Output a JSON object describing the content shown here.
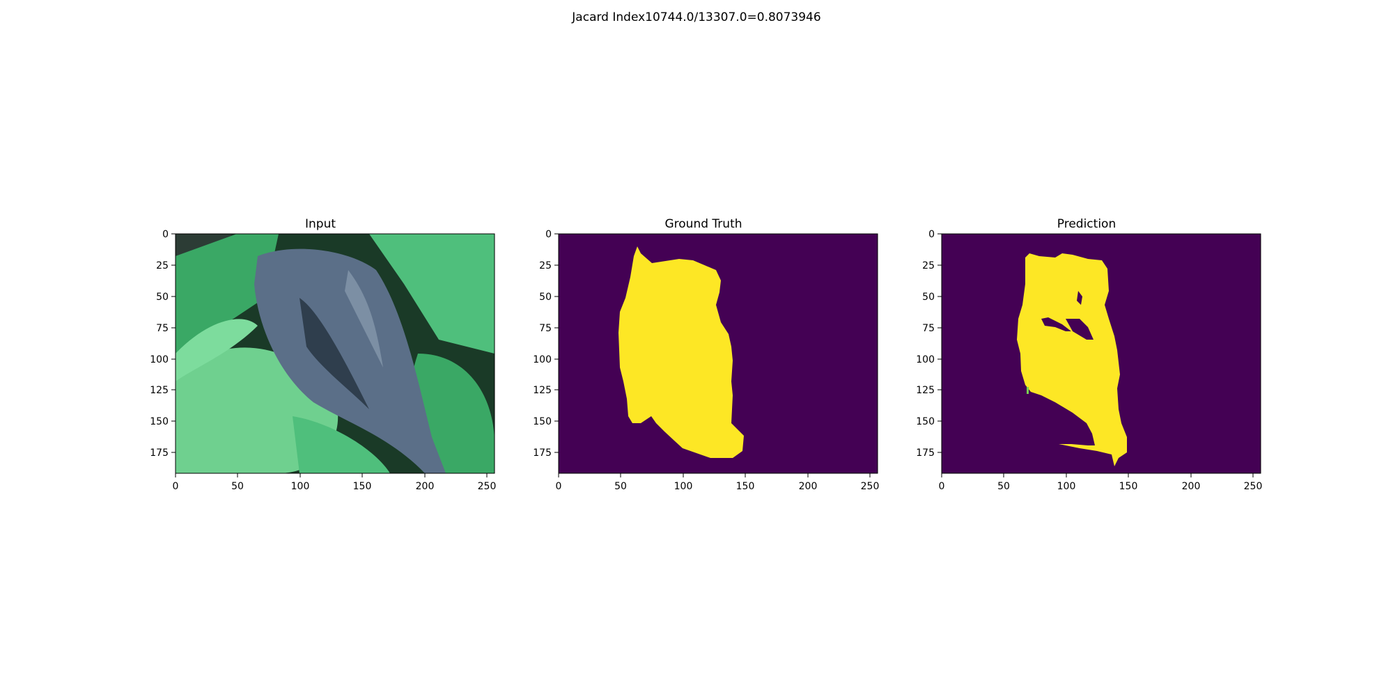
{
  "figure": {
    "suptitle": "Jacard Index10744.0/13307.0=0.8073946"
  },
  "panels": [
    {
      "title": "Input",
      "kind": "photo",
      "content_icon": "leaf-photo",
      "xticks": [
        "0",
        "50",
        "100",
        "150",
        "200",
        "250"
      ],
      "yticks": [
        "0",
        "25",
        "50",
        "75",
        "100",
        "125",
        "150",
        "175"
      ]
    },
    {
      "title": "Ground Truth",
      "kind": "mask",
      "xticks": [
        "0",
        "50",
        "100",
        "150",
        "200",
        "250"
      ],
      "yticks": [
        "0",
        "25",
        "50",
        "75",
        "100",
        "125",
        "150",
        "175"
      ]
    },
    {
      "title": "Prediction",
      "kind": "mask",
      "xticks": [
        "0",
        "50",
        "100",
        "150",
        "200",
        "250"
      ],
      "yticks": [
        "0",
        "25",
        "50",
        "75",
        "100",
        "125",
        "150",
        "175"
      ]
    }
  ],
  "colors": {
    "mask_background": "#440154",
    "mask_foreground": "#fde725",
    "leaf_light": "#6fd08f",
    "leaf_mid": "#3aa865",
    "leaf_dark": "#1d6b3f",
    "lesion": "#5b6f88",
    "shadow": "#0e1f17"
  },
  "image_size": {
    "width": 256,
    "height": 192
  }
}
